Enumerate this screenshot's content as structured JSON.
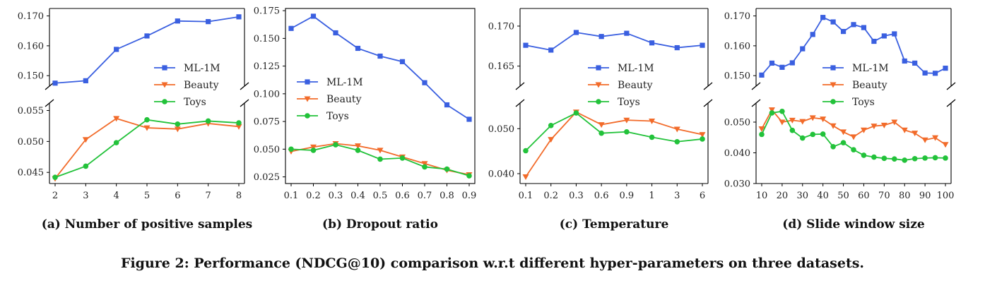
{
  "figure_caption": "Figure 2: Performance (NDCG@10) comparison w.r.t different hyper-parameters on three datasets.",
  "colors": {
    "ML-1M": "#3a5fe0",
    "Beauty": "#f26b2a",
    "Toys": "#22c23a"
  },
  "chart_data": [
    {
      "type": "line",
      "caption": "(a) Number of positive samples",
      "categories": [
        "2",
        "3",
        "4",
        "5",
        "6",
        "7",
        "8"
      ],
      "broken_y_axis": true,
      "upper": {
        "ylim": [
          0.1465,
          0.1725
        ],
        "ticks": [
          "0.150",
          "0.160",
          "0.170"
        ],
        "tick_values": [
          0.15,
          0.16,
          0.17
        ]
      },
      "lower": {
        "ylim": [
          0.0432,
          0.0562
        ],
        "ticks": [
          "0.045",
          "0.050",
          "0.055"
        ],
        "tick_values": [
          0.045,
          0.05,
          0.055
        ]
      },
      "legend": "center-right",
      "series": [
        {
          "name": "ML-1M",
          "marker": "square",
          "values": [
            0.1475,
            0.1483,
            0.1588,
            0.1633,
            0.1683,
            0.1681,
            0.1697
          ]
        },
        {
          "name": "Beauty",
          "marker": "triangle-down",
          "values": [
            0.044,
            0.0503,
            0.0537,
            0.0522,
            0.052,
            0.0529,
            0.0524
          ]
        },
        {
          "name": "Toys",
          "marker": "circle",
          "values": [
            0.0442,
            0.046,
            0.0498,
            0.0535,
            0.0528,
            0.0533,
            0.053
          ]
        }
      ]
    },
    {
      "type": "line",
      "caption": "(b) Dropout ratio",
      "categories": [
        "0.1",
        "0.2",
        "0.3",
        "0.4",
        "0.5",
        "0.6",
        "0.7",
        "0.8",
        "0.9"
      ],
      "broken_y_axis": false,
      "upper": {
        "ylim": [
          0.019,
          0.177
        ],
        "ticks": [
          "0.025",
          "0.050",
          "0.075",
          "0.100",
          "0.125",
          "0.150",
          "0.175"
        ],
        "tick_values": [
          0.025,
          0.05,
          0.075,
          0.1,
          0.125,
          0.15,
          0.175
        ]
      },
      "legend": "center-left",
      "series": [
        {
          "name": "ML-1M",
          "marker": "square",
          "values": [
            0.159,
            0.17,
            0.155,
            0.141,
            0.134,
            0.129,
            0.11,
            0.09,
            0.077
          ]
        },
        {
          "name": "Beauty",
          "marker": "triangle-down",
          "values": [
            0.048,
            0.052,
            0.055,
            0.053,
            0.049,
            0.043,
            0.037,
            0.031,
            0.027
          ]
        },
        {
          "name": "Toys",
          "marker": "circle",
          "values": [
            0.05,
            0.049,
            0.054,
            0.049,
            0.041,
            0.042,
            0.034,
            0.032,
            0.026
          ]
        }
      ]
    },
    {
      "type": "line",
      "caption": "(c) Temperature",
      "categories": [
        "0.1",
        "0.2",
        "0.3",
        "0.6",
        "0.9",
        "1",
        "3",
        "6"
      ],
      "broken_y_axis": true,
      "upper": {
        "ylim": [
          0.1625,
          0.1722
        ],
        "ticks": [
          "0.165",
          "0.170"
        ],
        "tick_values": [
          0.165,
          0.17
        ]
      },
      "lower": {
        "ylim": [
          0.0378,
          0.0557
        ],
        "ticks": [
          "0.040",
          "0.050"
        ],
        "tick_values": [
          0.04,
          0.05
        ]
      },
      "legend": "center-right",
      "series": [
        {
          "name": "ML-1M",
          "marker": "square",
          "values": [
            0.1676,
            0.167,
            0.1692,
            0.1687,
            0.1691,
            0.1679,
            0.1673,
            0.1676
          ]
        },
        {
          "name": "Beauty",
          "marker": "triangle-down",
          "values": [
            0.0393,
            0.0476,
            0.0537,
            0.0509,
            0.0519,
            0.0517,
            0.0499,
            0.0487
          ]
        },
        {
          "name": "Toys",
          "marker": "circle",
          "values": [
            0.0451,
            0.0507,
            0.0535,
            0.049,
            0.0493,
            0.0481,
            0.0471,
            0.0477
          ]
        }
      ]
    },
    {
      "type": "line",
      "caption": "(d) Slide window size",
      "categories": [
        "10",
        "15",
        "20",
        "25",
        "30",
        "35",
        "40",
        "45",
        "50",
        "55",
        "60",
        "65",
        "70",
        "75",
        "80",
        "85",
        "90",
        "95",
        "100"
      ],
      "tick_labels": [
        "10",
        "20",
        "30",
        "40",
        "50",
        "60",
        "70",
        "80",
        "90",
        "100"
      ],
      "broken_y_axis": true,
      "upper": {
        "ylim": [
          0.1465,
          0.1725
        ],
        "ticks": [
          "0.150",
          "0.160",
          "0.170"
        ],
        "tick_values": [
          0.15,
          0.16,
          0.17
        ]
      },
      "lower": {
        "ylim": [
          0.03,
          0.0562
        ],
        "ticks": [
          "0.030",
          "0.040",
          "0.050"
        ],
        "tick_values": [
          0.03,
          0.04,
          0.05
        ]
      },
      "legend": "center-right",
      "series": [
        {
          "name": "ML-1M",
          "marker": "square",
          "values": [
            0.1502,
            0.1542,
            0.1528,
            0.1543,
            0.159,
            0.1638,
            0.1695,
            0.168,
            0.1648,
            0.1671,
            0.1661,
            0.1615,
            0.1633,
            0.164,
            0.1549,
            0.1542,
            0.1509,
            0.1508,
            0.1525
          ]
        },
        {
          "name": "Beauty",
          "marker": "triangle-down",
          "values": [
            0.0478,
            0.054,
            0.05,
            0.0506,
            0.0502,
            0.0514,
            0.051,
            0.0488,
            0.0468,
            0.0452,
            0.0474,
            0.0487,
            0.049,
            0.05,
            0.0474,
            0.0464,
            0.0442,
            0.0449,
            0.0427
          ]
        },
        {
          "name": "Toys",
          "marker": "circle",
          "values": [
            0.046,
            0.053,
            0.0535,
            0.0473,
            0.0448,
            0.046,
            0.0461,
            0.042,
            0.0433,
            0.041,
            0.0392,
            0.0386,
            0.0382,
            0.038,
            0.0376,
            0.0381,
            0.0383,
            0.0384,
            0.0383
          ]
        }
      ]
    }
  ]
}
